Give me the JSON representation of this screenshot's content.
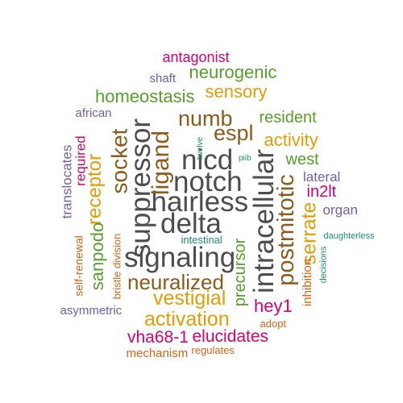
{
  "palette": {
    "gray": "#4d4d4d",
    "brown": "#8c5a1a",
    "orange": "#e69b00",
    "green": "#55a02a",
    "purple": "#6f5fa8",
    "magenta": "#d6006f",
    "teal": "#1b8f6b",
    "dark_orange": "#d26414"
  },
  "words": [
    {
      "text": "antagonist",
      "color": "magenta",
      "vertical": false
    },
    {
      "text": "shaft",
      "color": "purple",
      "vertical": false
    },
    {
      "text": "neurogenic",
      "color": "green",
      "vertical": false
    },
    {
      "text": "sensory",
      "color": "orange",
      "vertical": false
    },
    {
      "text": "homeostasis",
      "color": "green",
      "vertical": false
    },
    {
      "text": "african",
      "color": "purple",
      "vertical": false
    },
    {
      "text": "numb",
      "color": "brown",
      "vertical": false
    },
    {
      "text": "resident",
      "color": "green",
      "vertical": false
    },
    {
      "text": "espl",
      "color": "brown",
      "vertical": false
    },
    {
      "text": "activity",
      "color": "orange",
      "vertical": false
    },
    {
      "text": "nicd",
      "color": "gray",
      "vertical": false
    },
    {
      "text": "west",
      "color": "green",
      "vertical": false
    },
    {
      "text": "notch",
      "color": "gray",
      "vertical": false
    },
    {
      "text": "hairless",
      "color": "gray",
      "vertical": false
    },
    {
      "text": "lateral",
      "color": "purple",
      "vertical": false
    },
    {
      "text": "in2lt",
      "color": "magenta",
      "vertical": false
    },
    {
      "text": "organ",
      "color": "purple",
      "vertical": false
    },
    {
      "text": "delta",
      "color": "gray",
      "vertical": false
    },
    {
      "text": "intestinal",
      "color": "teal",
      "vertical": false
    },
    {
      "text": "daughterless",
      "color": "teal",
      "vertical": false
    },
    {
      "text": "signaling",
      "color": "gray",
      "vertical": false
    },
    {
      "text": "neuralized",
      "color": "brown",
      "vertical": false
    },
    {
      "text": "vestigial",
      "color": "orange",
      "vertical": false
    },
    {
      "text": "hey1",
      "color": "magenta",
      "vertical": false
    },
    {
      "text": "adopt",
      "color": "dark_orange",
      "vertical": false
    },
    {
      "text": "asymmetric",
      "color": "purple",
      "vertical": false
    },
    {
      "text": "activation",
      "color": "orange",
      "vertical": false
    },
    {
      "text": "vha68-1",
      "color": "magenta",
      "vertical": false
    },
    {
      "text": "elucidates",
      "color": "magenta",
      "vertical": false
    },
    {
      "text": "mechanism",
      "color": "dark_orange",
      "vertical": false
    },
    {
      "text": "regulates",
      "color": "dark_orange",
      "vertical": false
    },
    {
      "text": "twelve",
      "color": "teal",
      "vertical": true
    },
    {
      "text": "piib",
      "color": "teal",
      "vertical": false
    },
    {
      "text": "translocates",
      "color": "purple",
      "vertical": true
    },
    {
      "text": "required",
      "color": "magenta",
      "vertical": true
    },
    {
      "text": "receptor",
      "color": "orange",
      "vertical": true
    },
    {
      "text": "socket",
      "color": "brown",
      "vertical": true
    },
    {
      "text": "suppressor",
      "color": "gray",
      "vertical": true
    },
    {
      "text": "ligand",
      "color": "brown",
      "vertical": true
    },
    {
      "text": "intracellular",
      "color": "gray",
      "vertical": true
    },
    {
      "text": "postmitotic",
      "color": "brown",
      "vertical": true
    },
    {
      "text": "serrate",
      "color": "orange",
      "vertical": true
    },
    {
      "text": "sanpodo",
      "color": "green",
      "vertical": true
    },
    {
      "text": "self-renewal",
      "color": "dark_orange",
      "vertical": true
    },
    {
      "text": "bristle division",
      "color": "dark_orange",
      "vertical": true
    },
    {
      "text": "precursor",
      "color": "green",
      "vertical": true
    },
    {
      "text": "inhibition",
      "color": "dark_orange",
      "vertical": true
    },
    {
      "text": "decisions",
      "color": "teal",
      "vertical": true
    }
  ]
}
